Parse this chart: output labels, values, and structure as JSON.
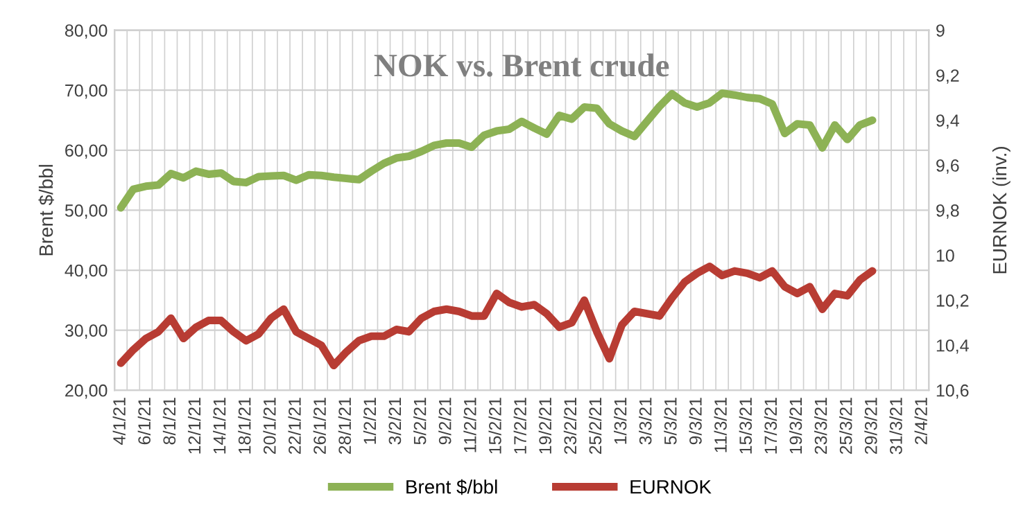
{
  "chart_data": {
    "type": "line",
    "title": "NOK vs. Brent crude",
    "ylabel": "Brent $/bbl",
    "y2label": "EURNOK (inv.)",
    "categories": [
      "4/1/21",
      null,
      "6/1/21",
      null,
      "8/1/21",
      null,
      "12/1/21",
      null,
      "14/1/21",
      null,
      "18/1/21",
      null,
      "20/1/21",
      null,
      "22/1/21",
      null,
      "26/1/21",
      null,
      "28/1/21",
      null,
      "1/2/21",
      null,
      "3/2/21",
      null,
      "5/2/21",
      null,
      "9/2/21",
      null,
      "11/2/21",
      null,
      "15/2/21",
      null,
      "17/2/21",
      null,
      "19/2/21",
      null,
      "23/2/21",
      null,
      "25/2/21",
      null,
      "1/3/21",
      null,
      "3/3/21",
      null,
      "5/3/21",
      null,
      "9/3/21",
      null,
      "11/3/21",
      null,
      "15/3/21",
      null,
      "17/3/21",
      null,
      "19/3/21",
      null,
      "23/3/21",
      null,
      "25/3/21",
      null,
      "29/3/21",
      null,
      "31/3/21",
      null,
      "2/4/21"
    ],
    "series": [
      {
        "name": "Brent $/bbl",
        "color": "#8db255",
        "values": [
          50.4,
          53.5,
          54.0,
          54.2,
          56.1,
          55.4,
          56.5,
          56.0,
          56.2,
          54.8,
          54.6,
          55.6,
          55.7,
          55.8,
          55.0,
          55.9,
          55.8,
          55.5,
          55.3,
          55.1,
          56.5,
          57.8,
          58.7,
          59.0,
          59.8,
          60.8,
          61.2,
          61.2,
          60.5,
          62.5,
          63.2,
          63.5,
          64.8,
          63.7,
          62.7,
          65.8,
          65.2,
          67.2,
          67.0,
          64.4,
          63.2,
          62.3,
          64.8,
          67.3,
          69.4,
          67.9,
          67.2,
          67.9,
          69.5,
          69.2,
          68.8,
          68.6,
          67.7,
          62.8,
          64.4,
          64.2,
          60.4,
          64.2,
          61.8,
          64.2,
          65.0,
          null,
          null,
          null,
          null
        ]
      },
      {
        "name": "EURNOK",
        "color": "#b83c33",
        "axis": "y2",
        "values": [
          10.48,
          10.42,
          10.37,
          10.34,
          10.28,
          10.37,
          10.32,
          10.29,
          10.29,
          10.34,
          10.38,
          10.35,
          10.28,
          10.24,
          10.34,
          10.37,
          10.4,
          10.49,
          10.43,
          10.38,
          10.36,
          10.36,
          10.33,
          10.34,
          10.28,
          10.25,
          10.24,
          10.25,
          10.27,
          10.27,
          10.17,
          10.21,
          10.23,
          10.22,
          10.26,
          10.32,
          10.3,
          10.2,
          10.34,
          10.46,
          10.31,
          10.25,
          10.26,
          10.27,
          10.19,
          10.12,
          10.08,
          10.05,
          10.09,
          10.07,
          10.08,
          10.1,
          10.07,
          10.14,
          10.17,
          10.14,
          10.24,
          10.17,
          10.18,
          10.11,
          10.07,
          null,
          null,
          null,
          null
        ]
      }
    ],
    "ylim": [
      20,
      80
    ],
    "yticks": [
      {
        "value": 20,
        "label": "20,00"
      },
      {
        "value": 30,
        "label": "30,00"
      },
      {
        "value": 40,
        "label": "40,00"
      },
      {
        "value": 50,
        "label": "50,00"
      },
      {
        "value": 60,
        "label": "60,00"
      },
      {
        "value": 70,
        "label": "70,00"
      },
      {
        "value": 80,
        "label": "80,00"
      }
    ],
    "y2lim": [
      10.6,
      9
    ],
    "y2ticks": [
      9,
      {
        "value": 9.2,
        "label": "9,2"
      },
      {
        "value": 9.4,
        "label": "9,4"
      },
      {
        "value": 9.6,
        "label": "9,6"
      },
      {
        "value": 9.8,
        "label": "9,8"
      },
      10,
      {
        "value": 10.2,
        "label": "10,2"
      },
      {
        "value": 10.4,
        "label": "10,4"
      },
      {
        "value": 10.6,
        "label": "10,6"
      }
    ],
    "grid": true,
    "legend": "bottom",
    "marker": "none",
    "line_style": "solid"
  }
}
